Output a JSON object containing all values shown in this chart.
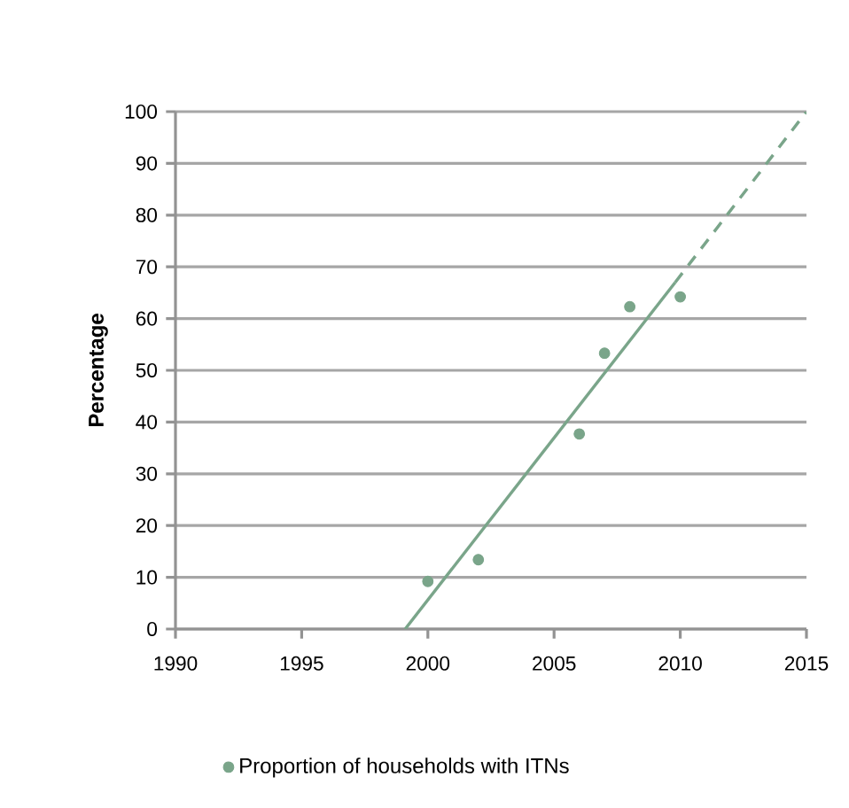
{
  "chart_data": {
    "type": "scatter",
    "ylabel": "Percentage",
    "xlim": [
      1990,
      2015
    ],
    "ylim": [
      0,
      100
    ],
    "xticks": [
      1990,
      1995,
      2000,
      2005,
      2010,
      2015
    ],
    "yticks": [
      0,
      10,
      20,
      30,
      40,
      50,
      60,
      70,
      80,
      90,
      100
    ],
    "grid": "y",
    "legend": "bottom",
    "series": [
      {
        "name": "Proportion of households with ITNs",
        "marker": "circle",
        "color": "#7aa58a",
        "x": [
          2000,
          2002,
          2006,
          2007,
          2008,
          2010
        ],
        "values": [
          9.2,
          13.4,
          37.7,
          53.3,
          62.3,
          64.2
        ]
      },
      {
        "type": "line",
        "marker": "none",
        "color": "#7aa58a",
        "line_style": "solid",
        "x": [
          1999.1,
          2009.8
        ],
        "values": [
          0,
          67
        ]
      },
      {
        "type": "line",
        "marker": "none",
        "color": "#7aa58a",
        "line_style": "dashed",
        "x": [
          2009.8,
          2015
        ],
        "values": [
          67,
          100
        ]
      }
    ]
  }
}
